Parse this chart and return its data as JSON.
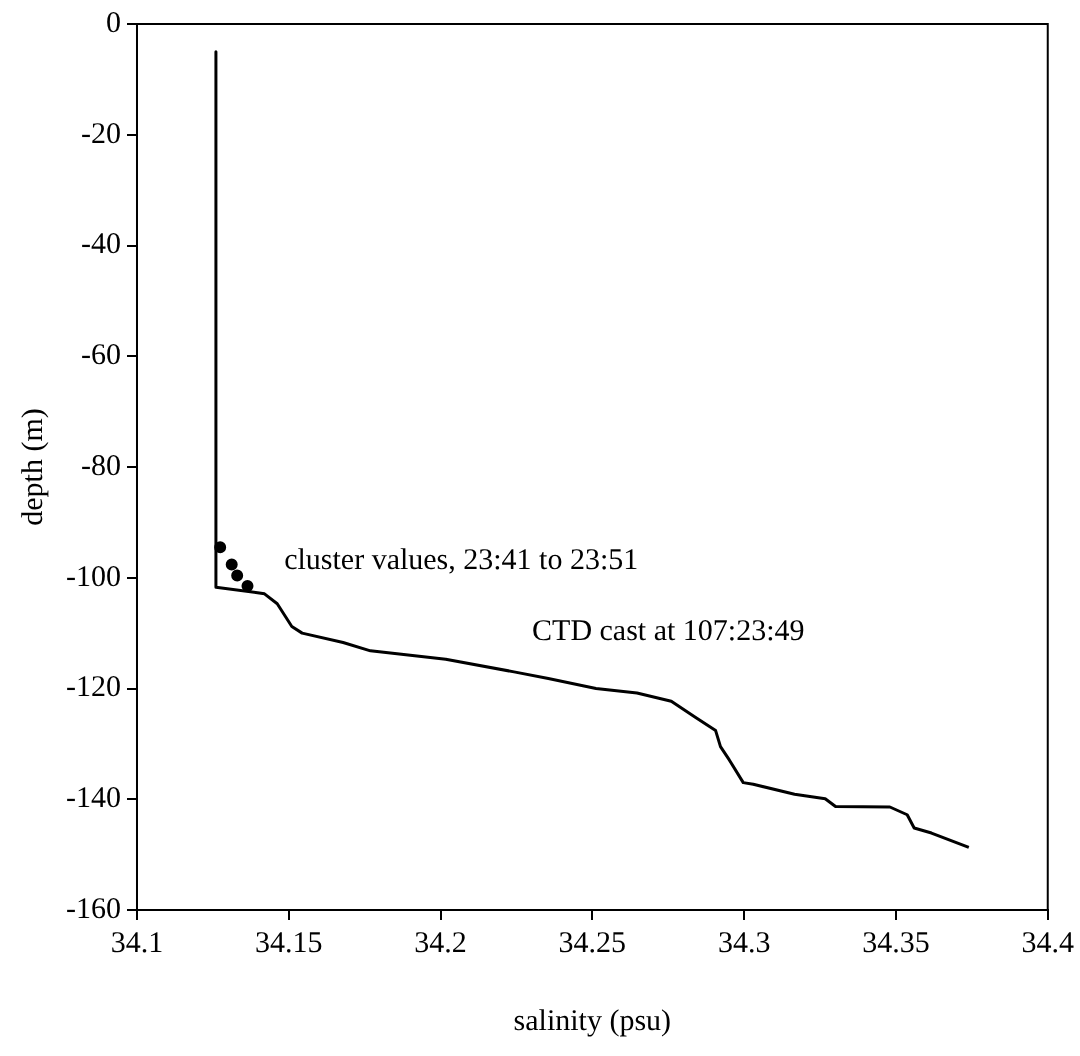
{
  "chart_data": {
    "type": "line",
    "xlabel": "salinity (psu)",
    "ylabel": "depth (m)",
    "xlim": [
      34.1,
      34.4
    ],
    "xticks": [
      34.1,
      34.15,
      34.2,
      34.25,
      34.3,
      34.35,
      34.4
    ],
    "ylim": [
      -160,
      0
    ],
    "yticks": [
      -160,
      -140,
      -120,
      -100,
      -80,
      -60,
      -40,
      -20,
      0
    ],
    "grid": false,
    "legend": false,
    "series": [
      {
        "type": "line",
        "name": "CTD cast at 107:23:49",
        "color": "#000000",
        "marker": "none",
        "x": [
          34.126,
          34.126,
          34.1397,
          34.142,
          34.1462,
          34.151,
          34.1544,
          34.1679,
          34.1769,
          34.2017,
          34.2242,
          34.2355,
          34.2512,
          34.2647,
          34.276,
          34.2839,
          34.2906,
          34.2922,
          34.2951,
          34.2997,
          34.303,
          34.3166,
          34.3267,
          34.3301,
          34.348,
          34.3537,
          34.356,
          34.3617,
          34.374
        ],
        "values": [
          -5,
          -101.7,
          -102.7,
          -102.9,
          -104.7,
          -108.8,
          -110,
          -111.7,
          -113.2,
          -114.7,
          -117,
          -118.2,
          -120,
          -120.8,
          -122.3,
          -125.2,
          -127.6,
          -130.5,
          -132.9,
          -137,
          -137.3,
          -139.1,
          -139.9,
          -141.3,
          -141.4,
          -142.8,
          -145.2,
          -146.1,
          -148.7
        ]
      },
      {
        "type": "scatter",
        "name": "cluster values, 23:41 to 23:51",
        "color": "#000000",
        "marker": "circle",
        "x": [
          34.1274,
          34.1312,
          34.133,
          34.1364
        ],
        "values": [
          -94.5,
          -97.6,
          -99.6,
          -101.5
        ]
      }
    ]
  }
}
